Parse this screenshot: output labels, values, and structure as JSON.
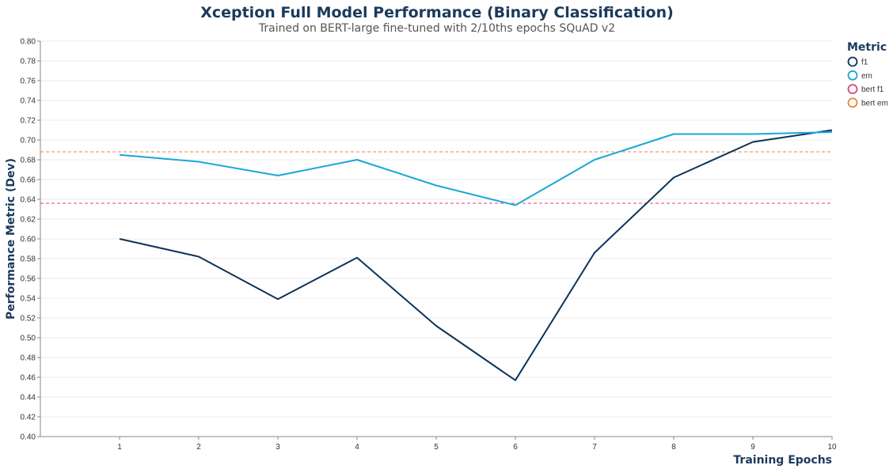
{
  "chart_data": {
    "type": "line",
    "title": "Xception Full Model Performance (Binary Classification)",
    "subtitle": "Trained on BERT-large fine-tuned with 2/10ths epochs SQuAD v2",
    "xlabel": "Training Epochs",
    "ylabel": "Performance Metric (Dev)",
    "x": [
      1,
      2,
      3,
      4,
      5,
      6,
      7,
      8,
      9,
      10
    ],
    "xlim": [
      0,
      10
    ],
    "ylim": [
      0.4,
      0.8
    ],
    "y_ticks": [
      "0.40",
      "0.42",
      "0.44",
      "0.46",
      "0.48",
      "0.50",
      "0.52",
      "0.54",
      "0.56",
      "0.58",
      "0.60",
      "0.62",
      "0.64",
      "0.66",
      "0.68",
      "0.70",
      "0.72",
      "0.74",
      "0.76",
      "0.78",
      "0.80"
    ],
    "x_ticks": [
      "1",
      "2",
      "3",
      "4",
      "5",
      "6",
      "7",
      "8",
      "9",
      "10"
    ],
    "grid": true,
    "legend_title": "Metric",
    "legend_position": "right",
    "series": [
      {
        "name": "f1",
        "color": "#0d3358",
        "style": "solid",
        "values": [
          0.6,
          0.582,
          0.539,
          0.581,
          0.512,
          0.457,
          0.586,
          0.662,
          0.698,
          0.71
        ]
      },
      {
        "name": "em",
        "color": "#1aa7d8",
        "style": "solid",
        "values": [
          0.685,
          0.678,
          0.664,
          0.68,
          0.654,
          0.634,
          0.68,
          0.706,
          0.706,
          0.708
        ]
      }
    ],
    "reference_lines": [
      {
        "name": "bert f1",
        "color": "#e0407a",
        "style": "dashed",
        "value": 0.636
      },
      {
        "name": "bert em",
        "color": "#e9853a",
        "style": "dashed",
        "value": 0.688
      }
    ]
  }
}
